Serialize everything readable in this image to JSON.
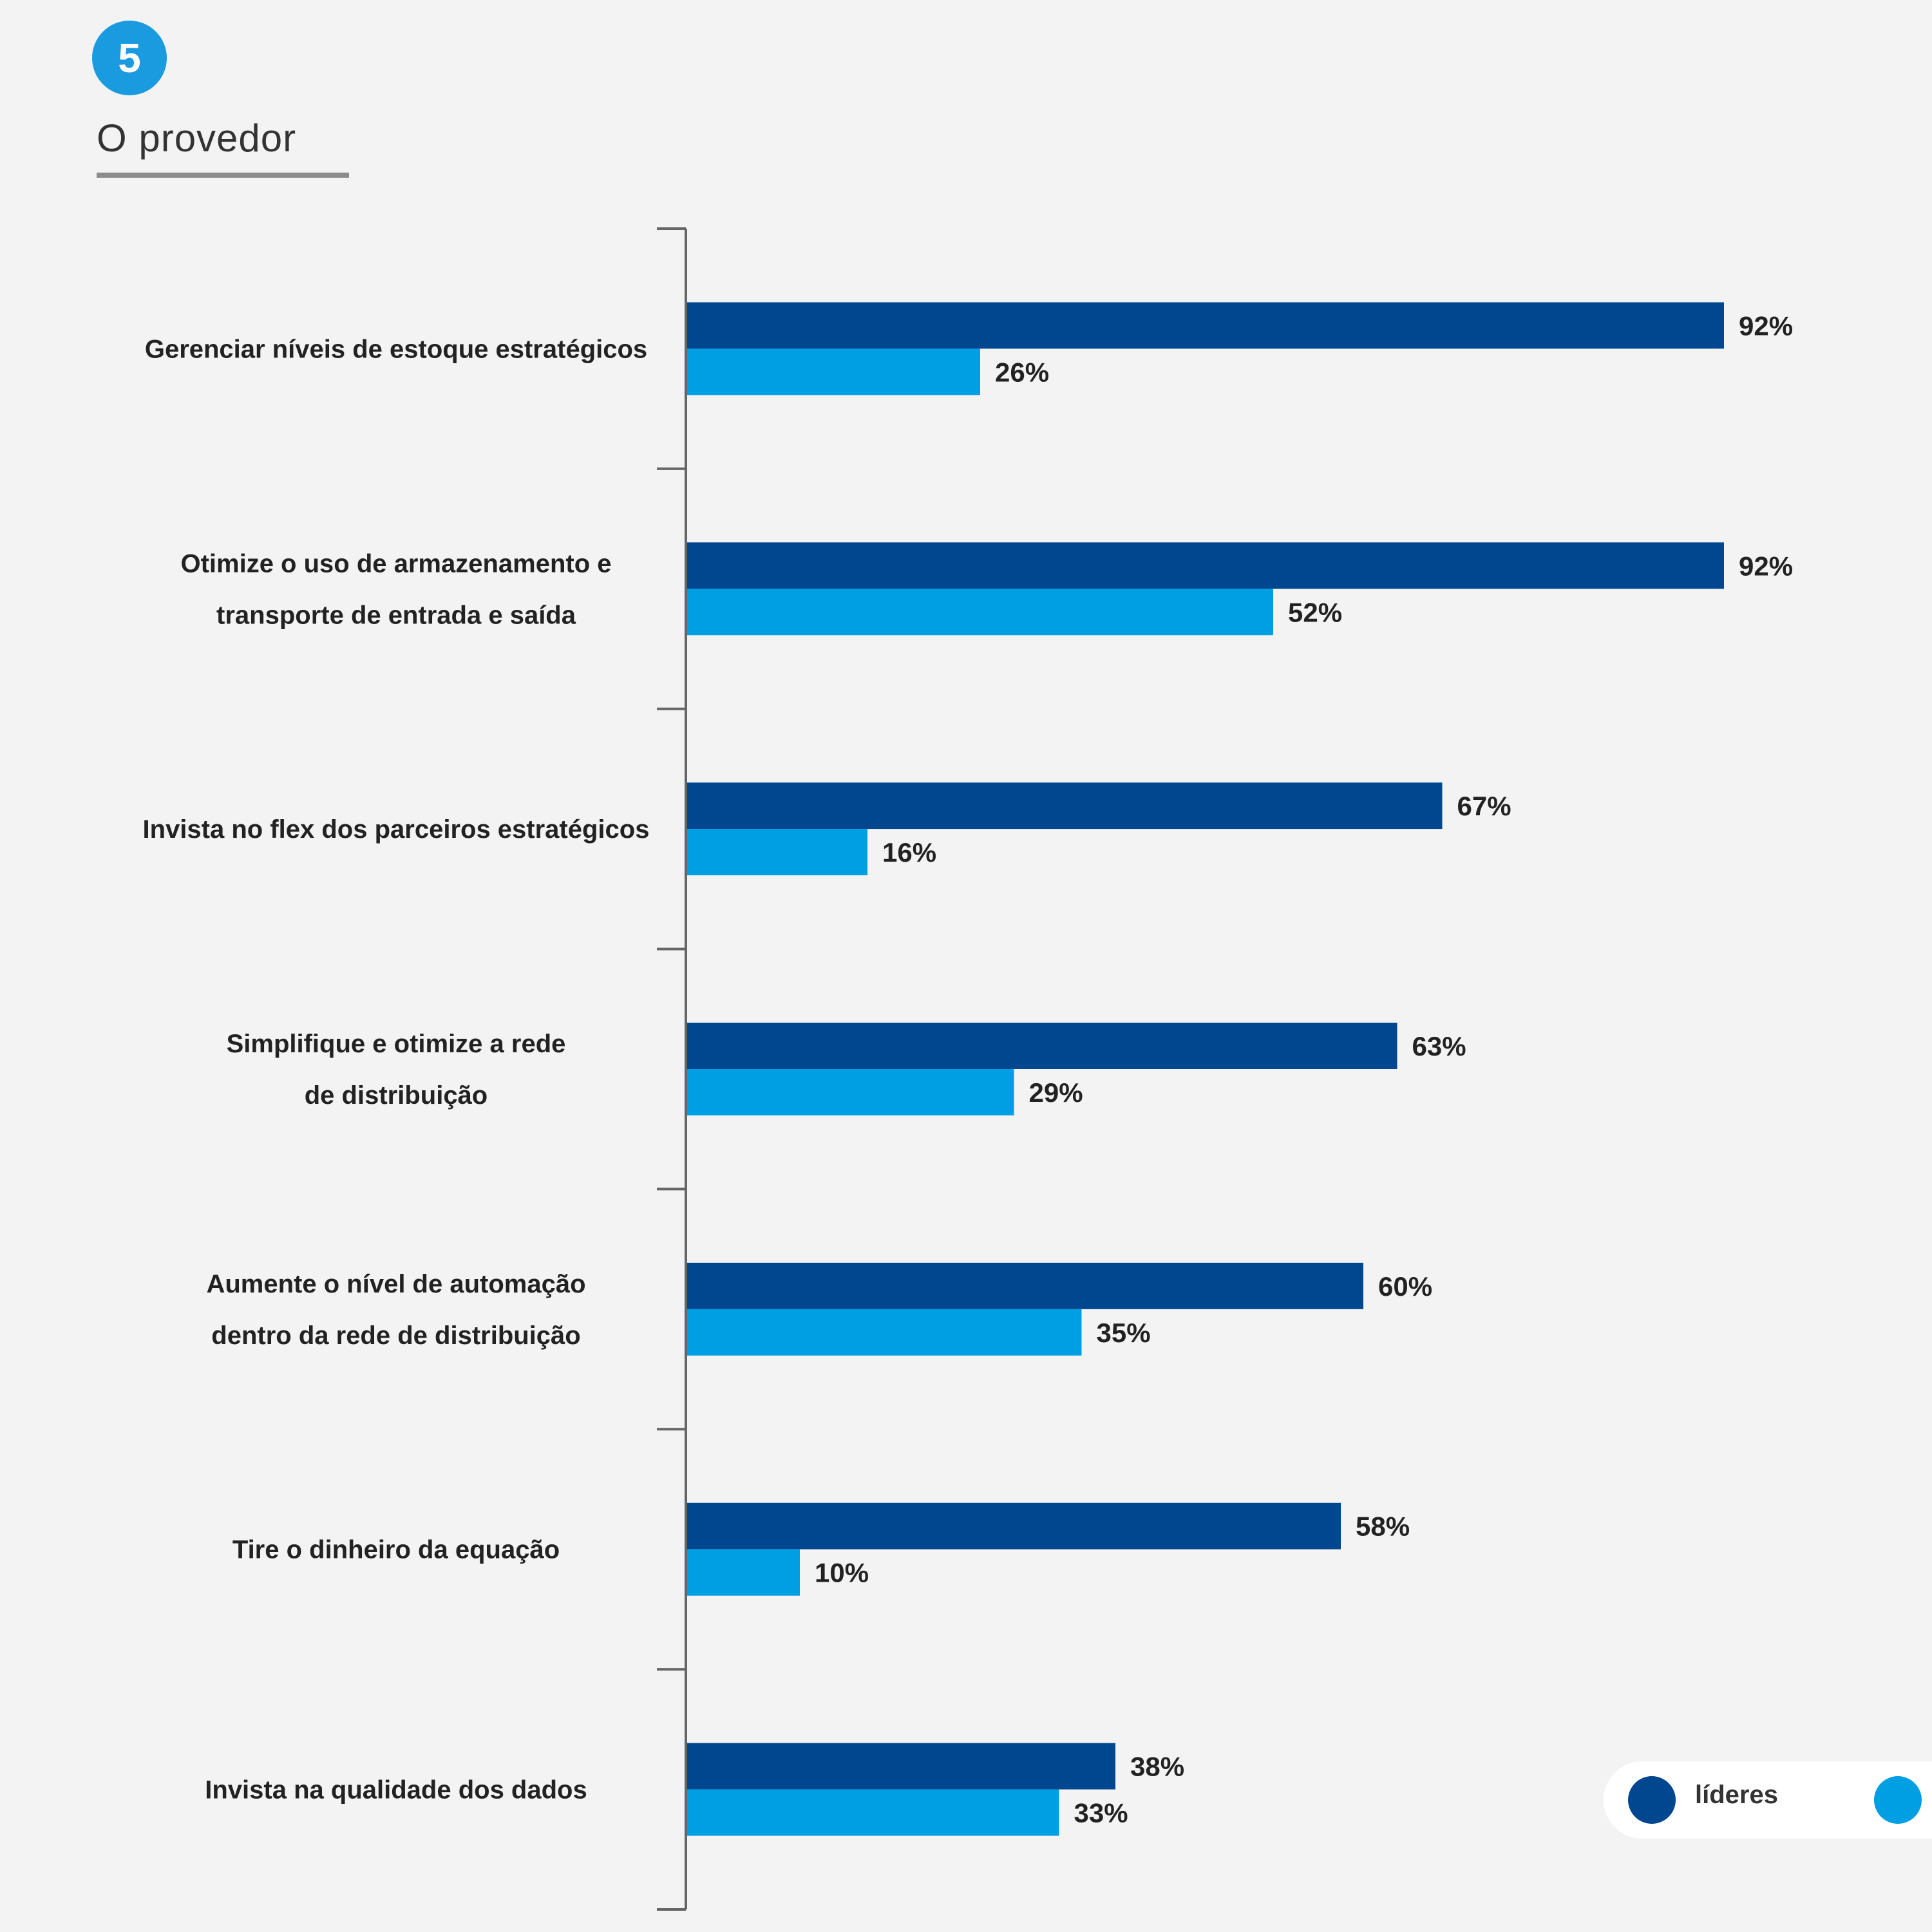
{
  "header": {
    "badge_number": "5",
    "section_title": "O provedor"
  },
  "colors": {
    "leaders": "#00478f",
    "others": "#009fe3",
    "badge": "#1a9be0",
    "axis": "#666666"
  },
  "chart_data": {
    "type": "bar",
    "orientation": "horizontal",
    "categories": [
      [
        "Gerenciar níveis de estoque estratégicos"
      ],
      [
        "Otimize o uso de armazenamento e",
        "transporte de entrada e saída"
      ],
      [
        "Invista no flex dos parceiros estratégicos"
      ],
      [
        "Simplifique e otimize a rede",
        "de distribuição"
      ],
      [
        "Aumente o nível de automação",
        "dentro da rede de distribuição"
      ],
      [
        "Tire o dinheiro da equação"
      ],
      [
        "Invista na qualidade dos dados"
      ]
    ],
    "series": [
      {
        "name": "líderes",
        "values": [
          92,
          92,
          67,
          63,
          60,
          58,
          38
        ]
      },
      {
        "values": [
          26,
          52,
          16,
          29,
          35,
          10,
          33
        ]
      }
    ],
    "value_suffix": "%",
    "xlim": [
      0,
      100
    ],
    "legend_position": "bottom-right",
    "grid": false
  }
}
